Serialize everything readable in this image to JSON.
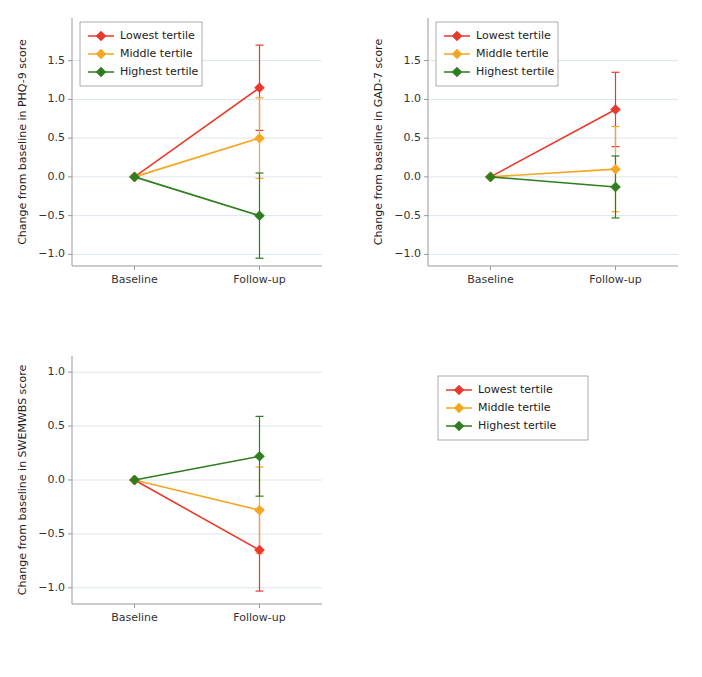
{
  "chart_data": [
    {
      "type": "line",
      "y_label": "Change from baseline in PHQ-9 score",
      "categories": [
        "Baseline",
        "Follow-up"
      ],
      "series": [
        {
          "name": "Lowest tertile",
          "color": "#e8392a",
          "values": [
            0.0,
            1.15
          ],
          "errors": [
            null,
            0.55
          ]
        },
        {
          "name": "Middle tertile",
          "color": "#f5a623",
          "values": [
            0.0,
            0.5
          ],
          "errors": [
            null,
            0.52
          ]
        },
        {
          "name": "Highest tertile",
          "color": "#2e7d1e",
          "values": [
            0.0,
            -0.5
          ],
          "errors": [
            null,
            0.55
          ]
        }
      ],
      "ylim": [
        -1.15,
        2.05
      ],
      "yticks": [
        {
          "value": -1.0,
          "label": "−1.0"
        },
        {
          "value": -0.5,
          "label": "−0.5"
        },
        {
          "value": 0.0,
          "label": "0.0"
        },
        {
          "value": 0.5,
          "label": "0.5"
        },
        {
          "value": 1.0,
          "label": "1.0"
        },
        {
          "value": 1.5,
          "label": "1.5"
        }
      ],
      "grid": true,
      "legend": "upper left",
      "marker": "diamond"
    },
    {
      "type": "line",
      "y_label": "Change from baseline in GAD-7 score",
      "categories": [
        "Baseline",
        "Follow-up"
      ],
      "series": [
        {
          "name": "Lowest tertile",
          "color": "#e8392a",
          "values": [
            0.0,
            0.87
          ],
          "errors": [
            null,
            0.48
          ]
        },
        {
          "name": "Middle tertile",
          "color": "#f5a623",
          "values": [
            0.0,
            0.1
          ],
          "errors": [
            null,
            0.55
          ]
        },
        {
          "name": "Highest tertile",
          "color": "#2e7d1e",
          "values": [
            0.0,
            -0.13
          ],
          "errors": [
            null,
            0.4
          ]
        }
      ],
      "ylim": [
        -1.15,
        2.05
      ],
      "yticks": [
        {
          "value": -1.0,
          "label": "−1.0"
        },
        {
          "value": -0.5,
          "label": "−0.5"
        },
        {
          "value": 0.0,
          "label": "0.0"
        },
        {
          "value": 0.5,
          "label": "0.5"
        },
        {
          "value": 1.0,
          "label": "1.0"
        },
        {
          "value": 1.5,
          "label": "1.5"
        }
      ],
      "grid": true,
      "legend": "upper left",
      "marker": "diamond"
    },
    {
      "type": "line",
      "y_label": "Change from baseline in SWEMWBS score",
      "categories": [
        "Baseline",
        "Follow-up"
      ],
      "series": [
        {
          "name": "Lowest tertile",
          "color": "#e8392a",
          "values": [
            0.0,
            -0.65
          ],
          "errors": [
            null,
            0.38
          ]
        },
        {
          "name": "Middle tertile",
          "color": "#f5a623",
          "values": [
            0.0,
            -0.28
          ],
          "errors": [
            null,
            0.4
          ]
        },
        {
          "name": "Highest tertile",
          "color": "#2e7d1e",
          "values": [
            0.0,
            0.22
          ],
          "errors": [
            null,
            0.37
          ]
        }
      ],
      "ylim": [
        -1.15,
        1.15
      ],
      "yticks": [
        {
          "value": -1.0,
          "label": "−1.0"
        },
        {
          "value": -0.5,
          "label": "−0.5"
        },
        {
          "value": 0.0,
          "label": "0.0"
        },
        {
          "value": 0.5,
          "label": "0.5"
        },
        {
          "value": 1.0,
          "label": "1.0"
        }
      ],
      "grid": true,
      "legend": "right",
      "marker": "diamond"
    }
  ]
}
